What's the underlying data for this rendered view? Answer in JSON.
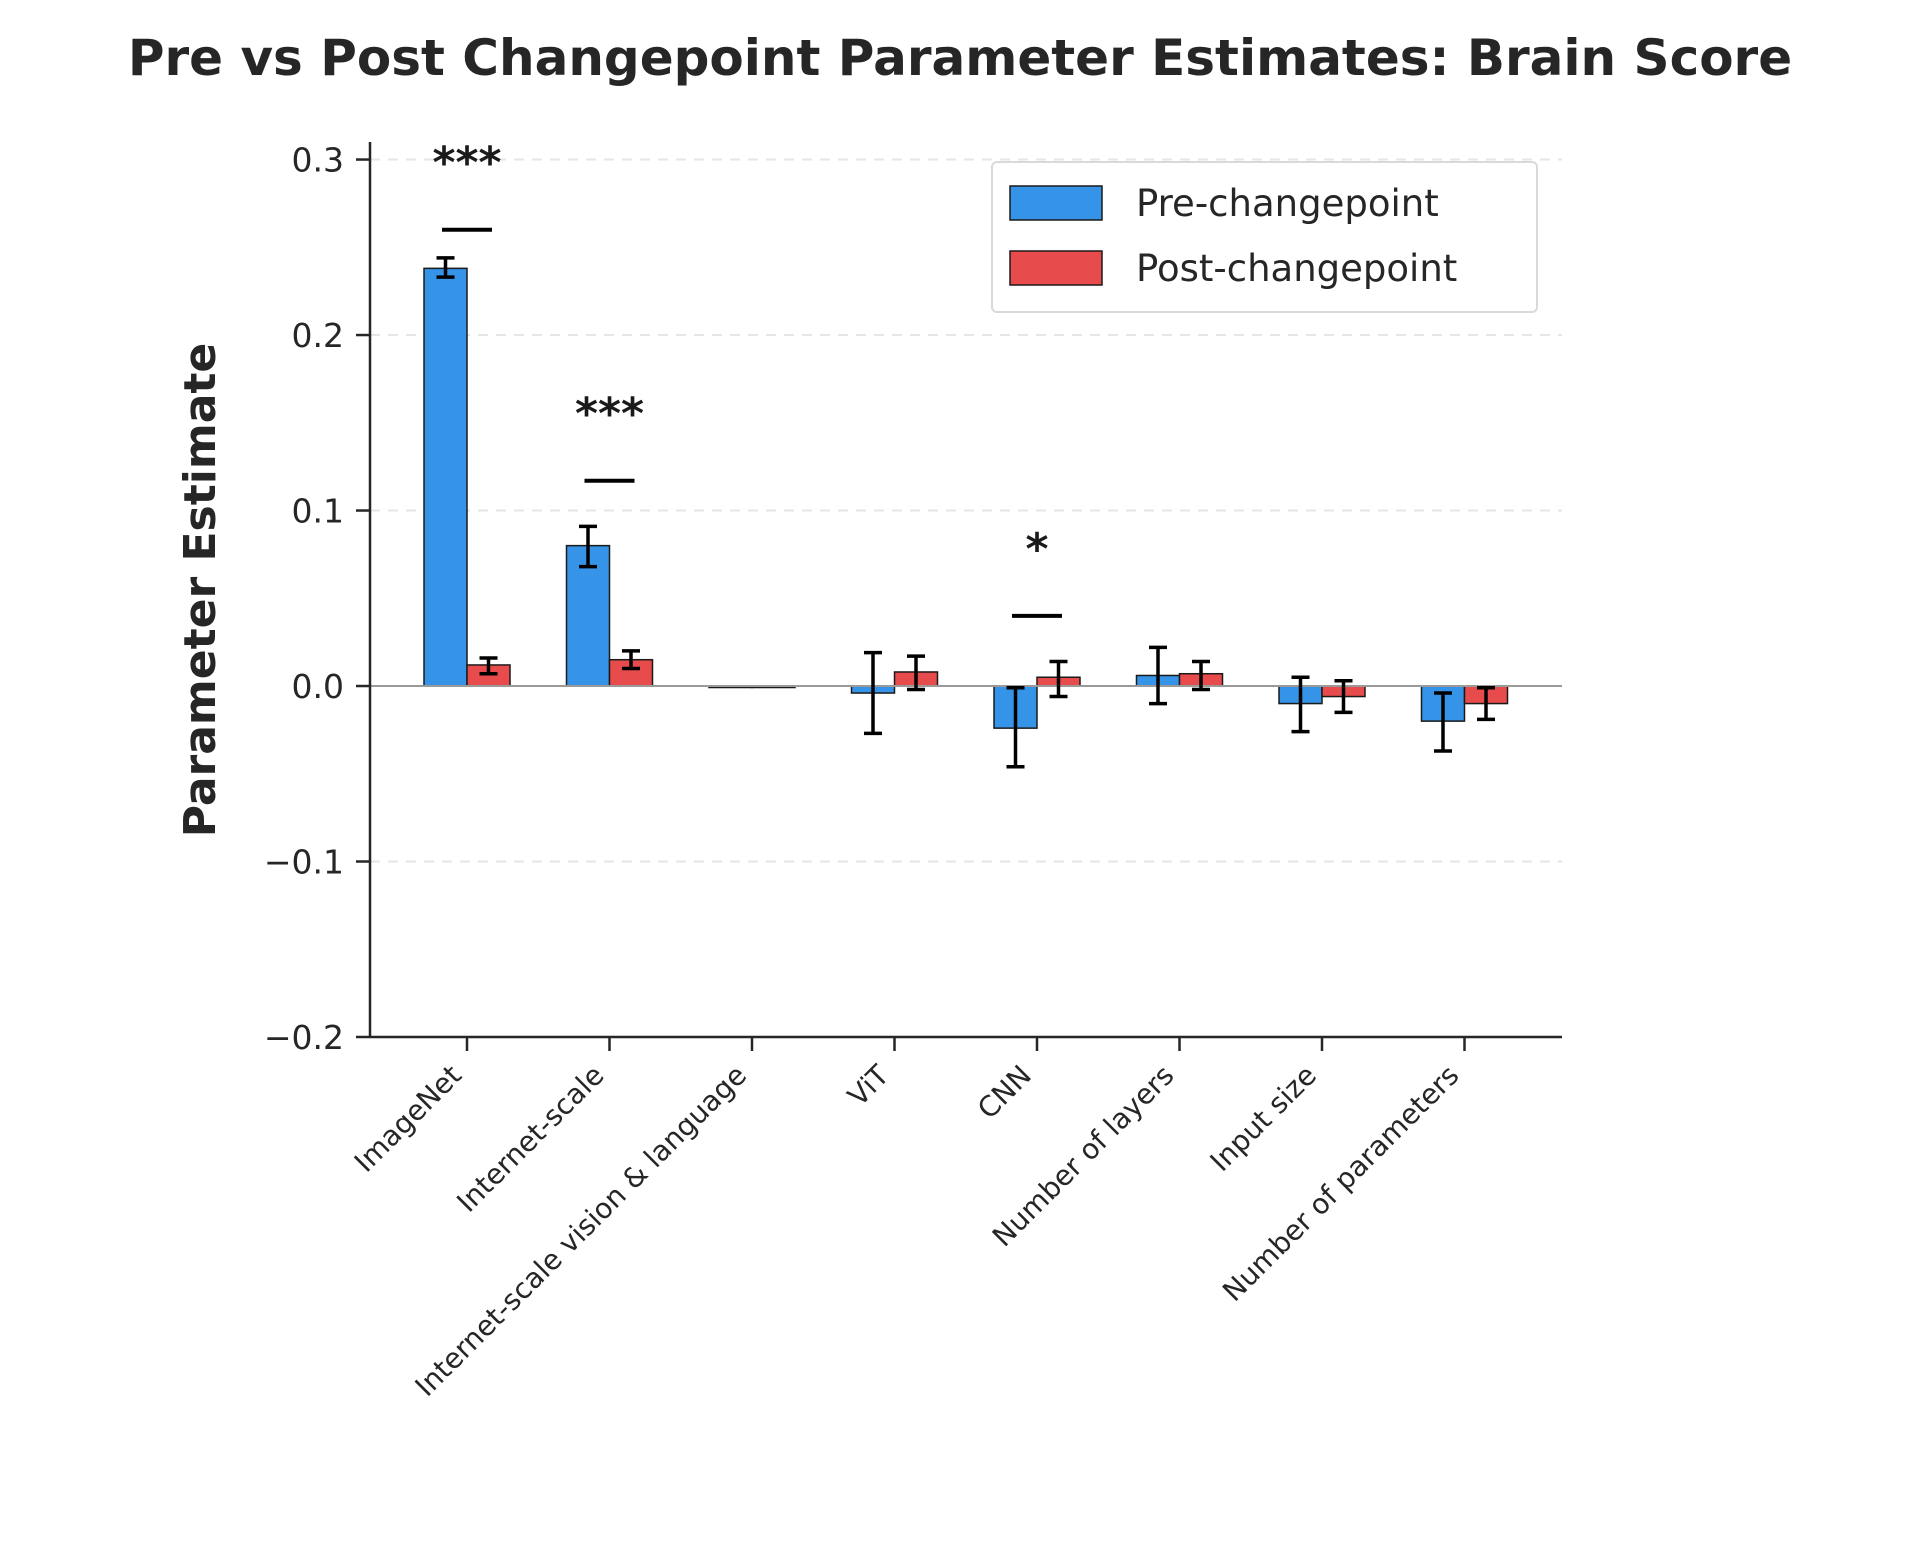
{
  "chart_data": {
    "type": "bar",
    "title": "Pre vs Post Changepoint Parameter Estimates: Brain Score",
    "xlabel": "",
    "ylabel": "Parameter Estimate",
    "ylim": [
      -0.2,
      0.31
    ],
    "yticks": [
      -0.2,
      -0.1,
      0.0,
      0.1,
      0.2,
      0.3
    ],
    "ytick_labels": [
      "−0.2",
      "−0.1",
      "0.0",
      "0.1",
      "0.2",
      "0.3"
    ],
    "grid": "y, dashed",
    "legend_position": "top-right",
    "categories": [
      "ImageNet",
      "Internet-scale",
      "Internet-scale vision & language",
      "ViT",
      "CNN",
      "Number of layers",
      "Input size",
      "Number of parameters"
    ],
    "series": [
      {
        "name": "Pre-changepoint",
        "color": "#3694e8",
        "values": [
          0.238,
          0.08,
          0.0,
          -0.004,
          -0.024,
          0.006,
          -0.01,
          -0.02
        ],
        "err_low": [
          0.233,
          0.068,
          0.0,
          -0.027,
          -0.046,
          -0.01,
          -0.026,
          -0.037
        ],
        "err_high": [
          0.244,
          0.091,
          0.0,
          0.019,
          -0.001,
          0.022,
          0.005,
          -0.004
        ]
      },
      {
        "name": "Post-changepoint",
        "color": "#e84b4b",
        "values": [
          0.012,
          0.015,
          0.0,
          0.008,
          0.005,
          0.007,
          -0.006,
          -0.01
        ],
        "err_low": [
          0.007,
          0.01,
          0.0,
          -0.002,
          -0.006,
          -0.002,
          -0.015,
          -0.019
        ],
        "err_high": [
          0.016,
          0.02,
          0.0,
          0.017,
          0.014,
          0.014,
          0.003,
          -0.001
        ]
      }
    ],
    "significance": [
      {
        "category_index": 0,
        "label": "***",
        "bracket_y": 0.26
      },
      {
        "category_index": 1,
        "label": "***",
        "bracket_y": 0.117
      },
      {
        "category_index": 4,
        "label": "*",
        "bracket_y": 0.04
      }
    ]
  }
}
